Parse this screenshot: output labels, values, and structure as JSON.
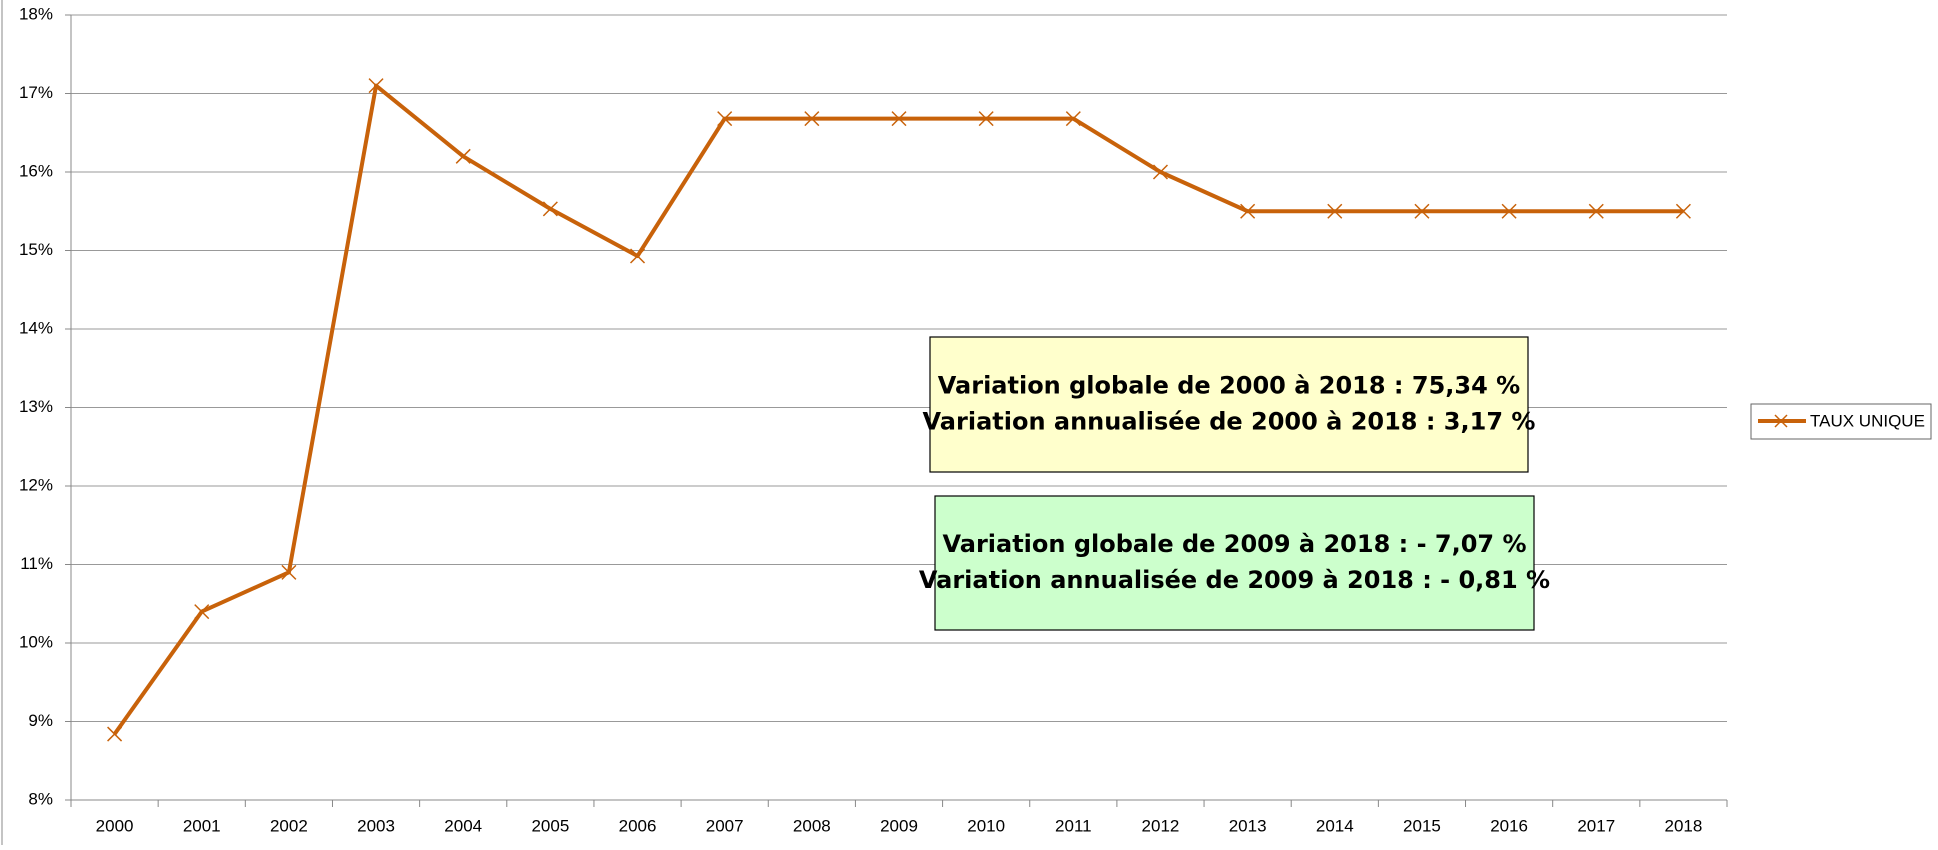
{
  "chart_data": {
    "type": "line",
    "categories": [
      "2000",
      "2001",
      "2002",
      "2003",
      "2004",
      "2005",
      "2006",
      "2007",
      "2008",
      "2009",
      "2010",
      "2011",
      "2012",
      "2013",
      "2014",
      "2015",
      "2016",
      "2017",
      "2018"
    ],
    "series": [
      {
        "name": "TAUX UNIQUE",
        "color": "#c8620a",
        "values": [
          8.84,
          10.4,
          10.9,
          17.1,
          16.2,
          15.53,
          14.93,
          16.68,
          16.68,
          16.68,
          16.68,
          16.68,
          16.0,
          15.5,
          15.5,
          15.5,
          15.5,
          15.5,
          15.5
        ]
      }
    ],
    "ylim": [
      8,
      18
    ],
    "yticks": [
      {
        "value": 8,
        "label": "8%"
      },
      {
        "value": 9,
        "label": "9%"
      },
      {
        "value": 10,
        "label": "10%"
      },
      {
        "value": 11,
        "label": "11%"
      },
      {
        "value": 12,
        "label": "12%"
      },
      {
        "value": 13,
        "label": "13%"
      },
      {
        "value": 14,
        "label": "14%"
      },
      {
        "value": 15,
        "label": "15%"
      },
      {
        "value": 16,
        "label": "16%"
      },
      {
        "value": 17,
        "label": "17%"
      },
      {
        "value": 18,
        "label": "18%"
      }
    ],
    "grid": true,
    "legend": "right",
    "annotations": [
      {
        "lines": [
          "Variation globale de 2000 à 2018 : 75,34 %",
          "Variation annualisée de 2000 à 2018 : 3,17 %"
        ],
        "color": "#ffffcc"
      },
      {
        "lines": [
          "Variation globale de 2009 à 2018 : - 7,07 %",
          "Variation annualisée de 2009 à 2018 : - 0,81 %"
        ],
        "color": "#ccffcc"
      }
    ]
  }
}
